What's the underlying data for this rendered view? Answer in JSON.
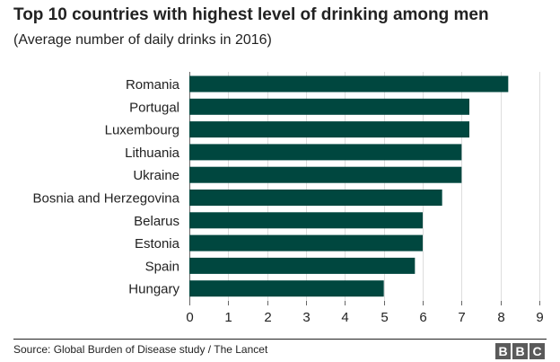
{
  "header": {
    "title": "Top 10 countries with highest level of drinking among men",
    "subtitle": "(Average number of daily drinks in 2016)"
  },
  "footer": {
    "source": "Source: Global Burden of Disease study / The Lancet",
    "logo_letters": [
      "B",
      "B",
      "C"
    ]
  },
  "colors": {
    "bar": "#00473f",
    "grid": "#dddddd",
    "axis": "#666666",
    "text": "#222222"
  },
  "chart_data": {
    "type": "bar",
    "orientation": "horizontal",
    "title": "Top 10 countries with highest level of drinking among men",
    "subtitle": "(Average number of daily drinks in 2016)",
    "xlabel": "",
    "ylabel": "",
    "categories": [
      "Romania",
      "Portugal",
      "Luxembourg",
      "Lithuania",
      "Ukraine",
      "Bosnia and Herzegovina",
      "Belarus",
      "Estonia",
      "Spain",
      "Hungary"
    ],
    "values": [
      8.2,
      7.2,
      7.2,
      7.0,
      7.0,
      6.5,
      6.0,
      6.0,
      5.8,
      5.0
    ],
    "xlim": [
      0,
      9
    ],
    "xticks": [
      "0",
      "1",
      "2",
      "3",
      "4",
      "5",
      "6",
      "7",
      "8",
      "9"
    ],
    "grid": true,
    "legend": "none"
  }
}
